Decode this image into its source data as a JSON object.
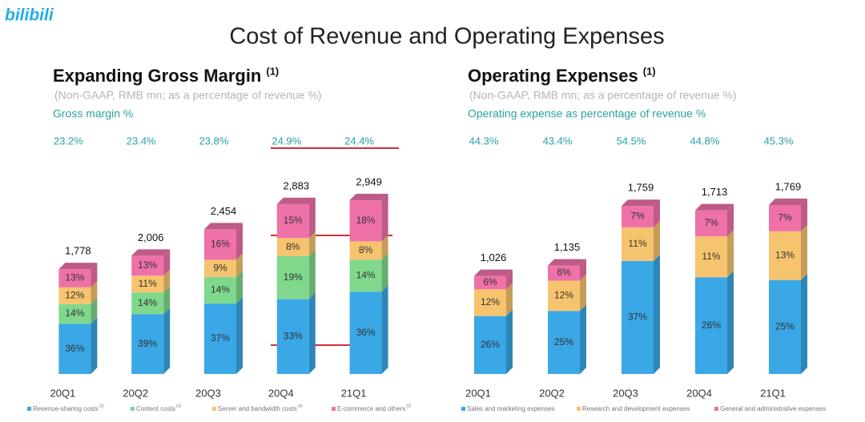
{
  "logo": "bilibili",
  "title": "Cost of Revenue and Operating Expenses",
  "chart_data": [
    {
      "type": "bar",
      "stacked": true,
      "title": "Expanding Gross Margin",
      "title_note": "(1)",
      "subtitle": "(Non-GAAP, RMB mn; as a percentage of revenue %)",
      "margin_label": "Gross margin %",
      "categories": [
        "20Q1",
        "20Q2",
        "20Q3",
        "20Q4",
        "21Q1"
      ],
      "margin": {
        "values": [
          23.2,
          23.4,
          23.8,
          24.9,
          24.4
        ],
        "value_labels": [
          "23.2%",
          "23.4%",
          "23.8%",
          "24.9%",
          "24.4%"
        ]
      },
      "totals": {
        "values": [
          1778,
          2006,
          2454,
          2883,
          2949
        ],
        "value_labels": [
          "1,778",
          "2,006",
          "2,454",
          "2,883",
          "2,949"
        ]
      },
      "series": [
        {
          "name": "Revenue-sharing costs",
          "note": "(2)",
          "color": "#3aa7e6",
          "values": [
            36,
            39,
            37,
            33,
            36
          ],
          "value_labels": [
            "36%",
            "39%",
            "37%",
            "33%",
            "36%"
          ]
        },
        {
          "name": "Content costs",
          "note": "(3)",
          "color": "#7fd88c",
          "values": [
            14,
            14,
            14,
            19,
            14
          ],
          "value_labels": [
            "14%",
            "14%",
            "14%",
            "19%",
            "14%"
          ]
        },
        {
          "name": "Server and bandwidth costs",
          "note": "(4)",
          "color": "#f6c46e",
          "values": [
            12,
            11,
            9,
            8,
            8
          ],
          "value_labels": [
            "12%",
            "11%",
            "9%",
            "8%",
            "8%"
          ]
        },
        {
          "name": "E-commerce and others",
          "note": "(5)",
          "color": "#ee72a8",
          "values": [
            13,
            13,
            16,
            15,
            18
          ],
          "value_labels": [
            "13%",
            "13%",
            "16%",
            "15%",
            "18%"
          ]
        }
      ]
    },
    {
      "type": "bar",
      "stacked": true,
      "title": "Operating Expenses",
      "title_note": "(1)",
      "subtitle": "(Non-GAAP, RMB mn; as a percentage of revenue %)",
      "margin_label": "Operating expense as percentage of revenue %",
      "categories": [
        "20Q1",
        "20Q2",
        "20Q3",
        "20Q4",
        "21Q1"
      ],
      "margin": {
        "values": [
          44.3,
          43.4,
          54.5,
          44.8,
          45.3
        ],
        "value_labels": [
          "44.3%",
          "43.4%",
          "54.5%",
          "44.8%",
          "45.3%"
        ]
      },
      "totals": {
        "values": [
          1026,
          1135,
          1759,
          1713,
          1769
        ],
        "value_labels": [
          "1,026",
          "1,135",
          "1,759",
          "1,713",
          "1,769"
        ]
      },
      "series": [
        {
          "name": "Sales and marketing expenses",
          "color": "#3aa7e6",
          "values": [
            26,
            25,
            37,
            26,
            25
          ],
          "value_labels": [
            "26%",
            "25%",
            "37%",
            "26%",
            "25%"
          ]
        },
        {
          "name": "Research and development expenses",
          "color": "#f6c46e",
          "values": [
            12,
            12,
            11,
            11,
            13
          ],
          "value_labels": [
            "12%",
            "12%",
            "11%",
            "11%",
            "13%"
          ]
        },
        {
          "name": "General and administrative expenses",
          "color": "#ee72a8",
          "values": [
            6,
            6,
            7,
            7,
            7
          ],
          "value_labels": [
            "6%",
            "6%",
            "7%",
            "7%",
            "7%"
          ]
        }
      ]
    }
  ]
}
